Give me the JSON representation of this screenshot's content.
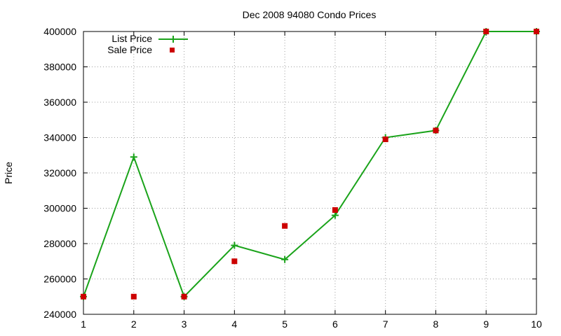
{
  "chart_data": {
    "type": "line",
    "title": "Dec 2008 94080 Condo Prices",
    "xlabel": "",
    "ylabel": "Price",
    "x": [
      1,
      2,
      3,
      4,
      5,
      6,
      7,
      8,
      9,
      10
    ],
    "xlim": [
      1,
      10
    ],
    "ylim": [
      240000,
      400000
    ],
    "xticks": [
      "1",
      "2",
      "3",
      "4",
      "5",
      "6",
      "7",
      "8",
      "9",
      "10"
    ],
    "yticks": [
      "240000",
      "260000",
      "280000",
      "300000",
      "320000",
      "340000",
      "360000",
      "380000",
      "400000"
    ],
    "grid": true,
    "legend_position": "top-left",
    "series": [
      {
        "name": "List Price",
        "style": "line+plus",
        "color": "#1aa31a",
        "values": [
          250000,
          329000,
          250000,
          279000,
          271000,
          296000,
          340000,
          344000,
          400000,
          400000
        ]
      },
      {
        "name": "Sale Price",
        "style": "square",
        "color": "#cc0000",
        "values": [
          250000,
          250000,
          250000,
          270000,
          290000,
          299000,
          339000,
          344000,
          400000,
          400000
        ]
      }
    ]
  }
}
